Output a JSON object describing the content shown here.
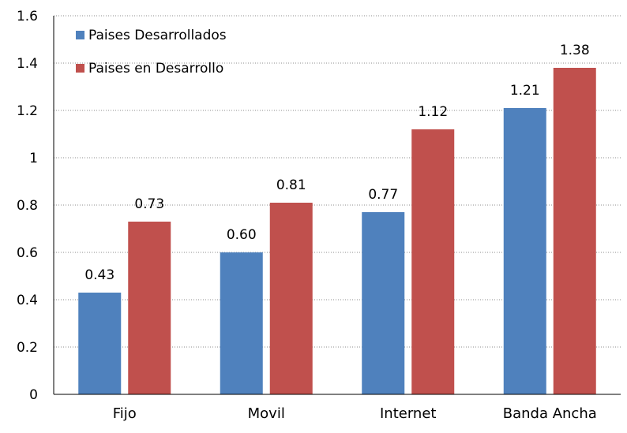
{
  "chart_data": {
    "type": "bar",
    "title": "",
    "xlabel": "",
    "ylabel": "",
    "categories": [
      "Fijo",
      "Movil",
      "Internet",
      "Banda Ancha"
    ],
    "series": [
      {
        "name": "Paises Desarrollados",
        "values": [
          0.43,
          0.6,
          0.77,
          1.21
        ],
        "labels": [
          "0.43",
          "0.60",
          "0.77",
          "1.21"
        ],
        "color": "#4F81BD"
      },
      {
        "name": "Paises en Desarrollo",
        "values": [
          0.73,
          0.81,
          1.12,
          1.38
        ],
        "labels": [
          "0.73",
          "0.81",
          "1.12",
          "1.38"
        ],
        "color": "#C0504D"
      }
    ],
    "ylim": [
      0,
      1.6
    ],
    "yticks": [
      "0",
      "0.2",
      "0.4",
      "0.6",
      "0.8",
      "1",
      "1.2",
      "1.4",
      "1.6"
    ],
    "grid": true,
    "legend_position": "top-left"
  }
}
